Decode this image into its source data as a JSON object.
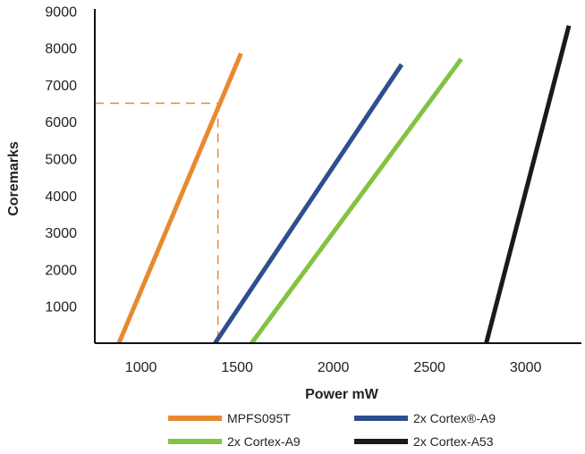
{
  "chart_data": {
    "type": "line",
    "title": "",
    "xlabel": "Power mW",
    "ylabel": "Coremarks",
    "xlim": [
      760,
      3290
    ],
    "ylim": [
      0,
      9200
    ],
    "xticks": [
      1000,
      1500,
      2000,
      2500,
      3000
    ],
    "yticks": [
      1000,
      2000,
      3000,
      4000,
      5000,
      6000,
      7000,
      8000,
      9000
    ],
    "grid": false,
    "legend_position": "bottom",
    "series": [
      {
        "name": "MPFS095T",
        "color": "#E8892F",
        "points": [
          [
            885,
            0
          ],
          [
            1520,
            7850
          ]
        ]
      },
      {
        "name": "2x Cortex®-A9",
        "color": "#2E4E8E",
        "points": [
          [
            1385,
            0
          ],
          [
            2355,
            7550
          ]
        ]
      },
      {
        "name": "2x Cortex-A9",
        "color": "#82C341",
        "points": [
          [
            1575,
            0
          ],
          [
            2665,
            7700
          ]
        ]
      },
      {
        "name": "2x Cortex-A53",
        "color": "#1A1A1A",
        "points": [
          [
            2795,
            0
          ],
          [
            3225,
            8600
          ]
        ]
      }
    ],
    "annotations": [
      {
        "type": "reference-lines",
        "x": 1400,
        "y": 6500,
        "color": "#E8892F",
        "style": "dashed"
      }
    ]
  }
}
